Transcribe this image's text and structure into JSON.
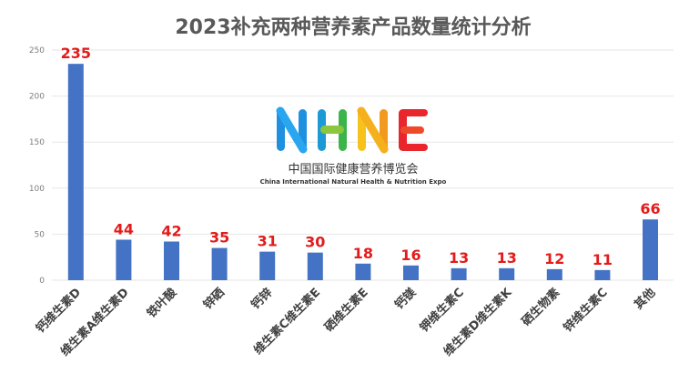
{
  "chart_data": {
    "type": "bar",
    "title": "2023补充两种营养素产品数量统计分析",
    "xlabel": "",
    "ylabel": "",
    "ylim": [
      0,
      250
    ],
    "yticks": [
      0,
      50,
      100,
      150,
      200,
      250
    ],
    "grid": true,
    "legend": "none",
    "categories": [
      "钙维生素D",
      "维生素A维生素D",
      "铁叶酸",
      "锌硒",
      "钙锌",
      "维生素C维生素E",
      "硒维生素E",
      "钙镁",
      "钾维生素C",
      "维生素D维生素K",
      "硒生物素",
      "锌维生素C",
      "其他"
    ],
    "values": [
      235,
      44,
      42,
      35,
      31,
      30,
      18,
      16,
      13,
      13,
      12,
      11,
      66
    ],
    "bar_color": "#4472c4",
    "label_color": "#e31b1b"
  },
  "watermark": {
    "logo_letters": "NHNE",
    "subtitle": "中国国际健康营养博览会",
    "english": "China International Natural Health & Nutrition Expo"
  }
}
